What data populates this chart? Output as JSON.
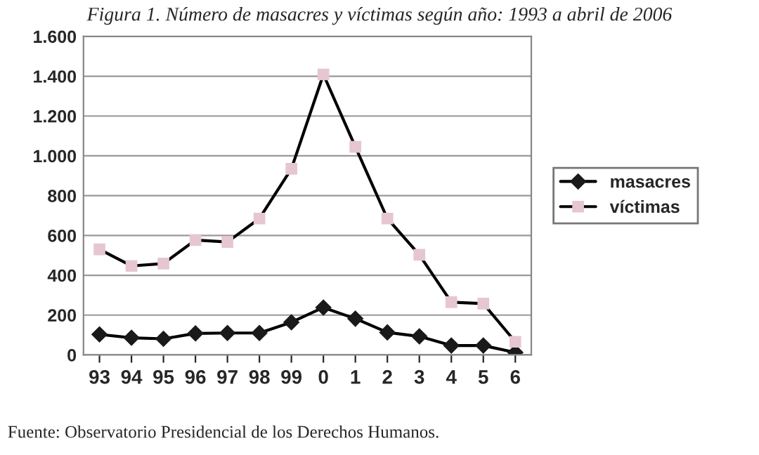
{
  "chart_data": {
    "type": "line",
    "title": "Figura 1. Número de masacres y víctimas según año: 1993 a abril de 2006",
    "categories": [
      "93",
      "94",
      "95",
      "96",
      "97",
      "98",
      "99",
      "0",
      "1",
      "2",
      "3",
      "4",
      "5",
      "6"
    ],
    "series": [
      {
        "name": "masacres",
        "color": "#1a1a1a",
        "marker": "diamond",
        "values": [
          103,
          86,
          81,
          108,
          110,
          110,
          164,
          238,
          182,
          113,
          93,
          47,
          47,
          12
        ]
      },
      {
        "name": "víctimas",
        "color": "#e6c6d2",
        "marker": "square",
        "values": [
          530,
          447,
          459,
          577,
          567,
          685,
          935,
          1409,
          1045,
          685,
          503,
          265,
          258,
          66
        ]
      }
    ],
    "ylim": [
      0,
      1600
    ],
    "yticks": [
      0,
      200,
      400,
      600,
      800,
      {
        "value": 1000,
        "label": "1.000"
      },
      {
        "value": 1200,
        "label": "1.200"
      },
      {
        "value": 1400,
        "label": "1.400"
      },
      {
        "value": 1600,
        "label": "1.600"
      }
    ],
    "grid": "y",
    "legend": "right",
    "line_style": "solid",
    "annotations": [
      "Fuente: Observatorio Presidencial de los Derechos Humanos."
    ]
  }
}
